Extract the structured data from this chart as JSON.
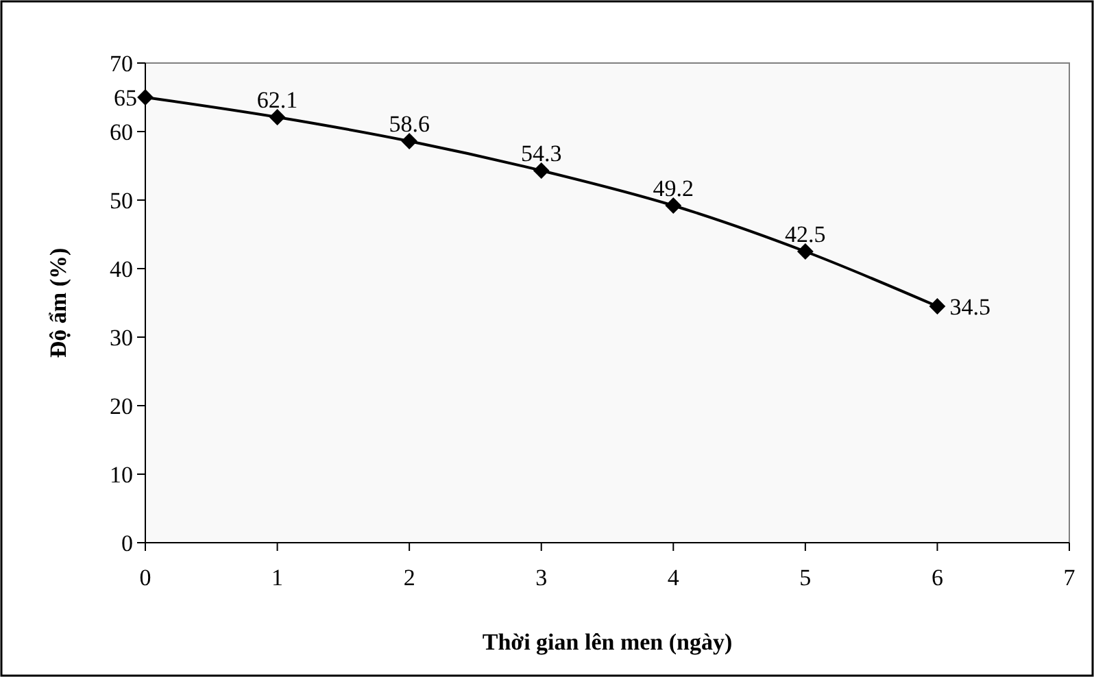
{
  "chart_data": {
    "type": "line",
    "xlabel": "Thời gian lên men (ngày)",
    "ylabel": "Độ ẩm (%)",
    "x": [
      0,
      1,
      2,
      3,
      4,
      5,
      6
    ],
    "series": [
      {
        "color": "#000000",
        "values": [
          65,
          62.1,
          58.6,
          54.3,
          49.2,
          42.5,
          34.5
        ]
      }
    ],
    "xlim": [
      0,
      7
    ],
    "xticks": [
      0,
      1,
      2,
      3,
      4,
      5,
      6,
      7
    ],
    "ylim": [
      0,
      70
    ],
    "yticks": [
      0,
      10,
      20,
      30,
      40,
      50,
      60,
      70
    ],
    "grid": false,
    "marker": "diamond",
    "line_style": "solid",
    "data_labels": true
  }
}
